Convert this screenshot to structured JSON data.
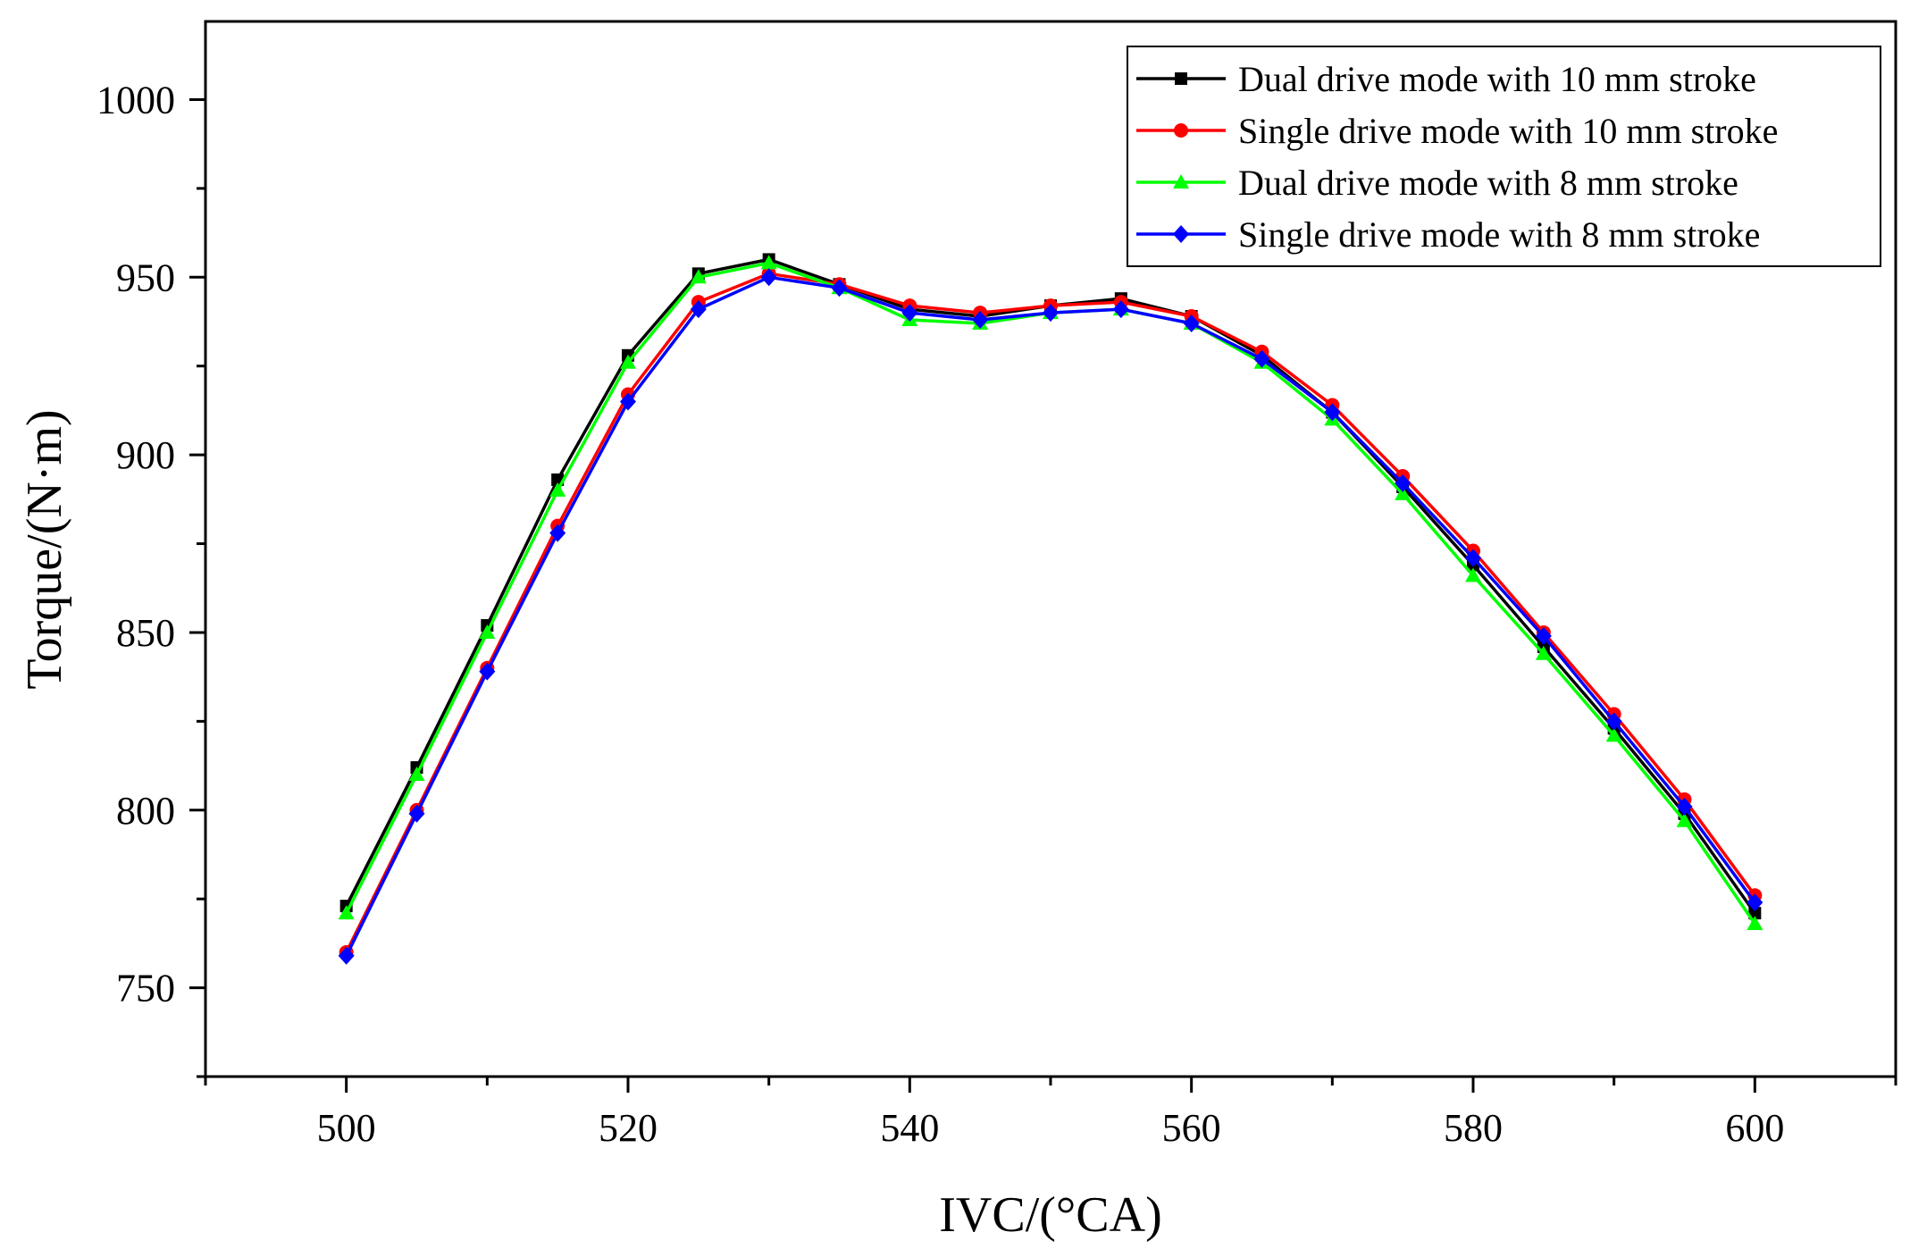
{
  "chart_data": {
    "type": "line",
    "title": "",
    "xlabel": "IVC/(°CA)",
    "ylabel": "Torque/(N·m)",
    "xlim": [
      490,
      610
    ],
    "ylim": [
      725,
      1022
    ],
    "xticks": [
      500,
      520,
      540,
      560,
      580,
      600
    ],
    "yticks": [
      750,
      800,
      850,
      900,
      950,
      1000
    ],
    "x": [
      500,
      505,
      510,
      515,
      520,
      525,
      530,
      535,
      540,
      545,
      550,
      555,
      560,
      565,
      570,
      575,
      580,
      585,
      590,
      595,
      600
    ],
    "legend_position": "top-right",
    "series": [
      {
        "name": "Dual drive mode with 10 mm stroke",
        "color": "#000000",
        "marker": "square",
        "values": [
          773,
          812,
          852,
          893,
          928,
          951,
          955,
          948,
          941,
          939,
          942,
          944,
          939,
          928,
          912,
          891,
          869,
          846,
          823,
          799,
          771
        ]
      },
      {
        "name": "Single drive mode with 10 mm stroke",
        "color": "#ff0000",
        "marker": "circle",
        "values": [
          760,
          800,
          840,
          880,
          917,
          943,
          951,
          948,
          942,
          940,
          942,
          943,
          939,
          929,
          914,
          894,
          873,
          850,
          827,
          803,
          776
        ]
      },
      {
        "name": "Dual drive mode with 8 mm stroke",
        "color": "#00ff00",
        "marker": "triangle",
        "values": [
          771,
          810,
          850,
          890,
          926,
          950,
          954,
          947,
          938,
          937,
          940,
          941,
          937,
          926,
          910,
          889,
          866,
          844,
          821,
          797,
          768
        ]
      },
      {
        "name": "Single drive mode with 8 mm stroke",
        "color": "#0000ff",
        "marker": "diamond",
        "values": [
          759,
          799,
          839,
          878,
          915,
          941,
          950,
          947,
          940,
          938,
          940,
          941,
          937,
          927,
          912,
          892,
          871,
          849,
          825,
          801,
          774
        ]
      }
    ]
  }
}
